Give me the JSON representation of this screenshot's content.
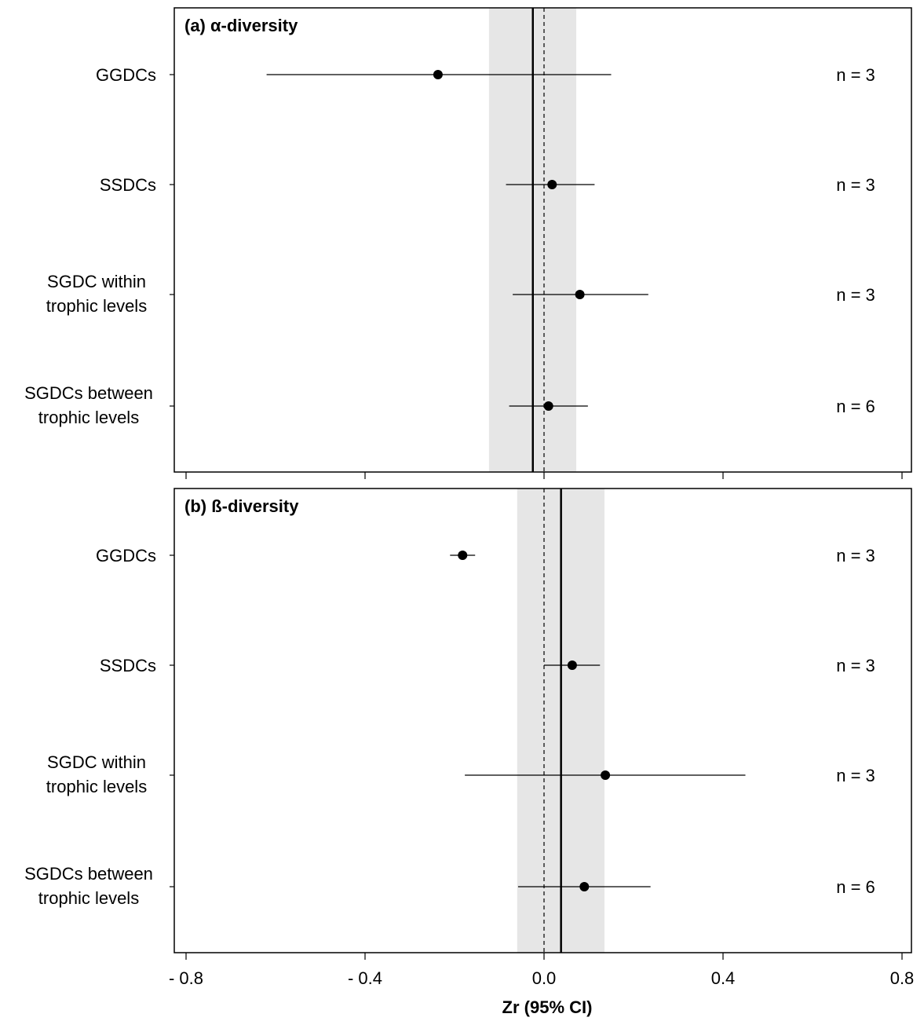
{
  "chart_data": [
    {
      "type": "scatter",
      "title": "(a) α-diversity",
      "categories": [
        [
          "GGDCs"
        ],
        [
          "SSDCs"
        ],
        [
          "SGDC within",
          "trophic levels"
        ],
        [
          "SGDCs between",
          "trophic levels"
        ]
      ],
      "points": [
        {
          "est": -0.237,
          "lo": -0.62,
          "hi": 0.15,
          "n_label": "n = 3"
        },
        {
          "est": 0.018,
          "lo": -0.085,
          "hi": 0.113,
          "n_label": "n = 3"
        },
        {
          "est": 0.08,
          "lo": -0.07,
          "hi": 0.233,
          "n_label": "n = 3"
        },
        {
          "est": 0.01,
          "lo": -0.078,
          "hi": 0.098,
          "n_label": "n = 6"
        }
      ],
      "overall": {
        "est": -0.025,
        "lo": -0.123,
        "hi": 0.072
      },
      "reference_line": 0.0,
      "xlim": [
        -0.8,
        0.8
      ]
    },
    {
      "type": "scatter",
      "title": "(b) ß-diversity",
      "categories": [
        [
          "GGDCs"
        ],
        [
          "SSDCs"
        ],
        [
          "SGDC within",
          "trophic levels"
        ],
        [
          "SGDCs between",
          "trophic levels"
        ]
      ],
      "points": [
        {
          "est": -0.182,
          "lo": -0.21,
          "hi": -0.154,
          "n_label": "n = 3"
        },
        {
          "est": 0.063,
          "lo": 0.0,
          "hi": 0.125,
          "n_label": "n = 3"
        },
        {
          "est": 0.137,
          "lo": -0.177,
          "hi": 0.45,
          "n_label": "n = 3"
        },
        {
          "est": 0.09,
          "lo": -0.058,
          "hi": 0.238,
          "n_label": "n = 6"
        }
      ],
      "overall": {
        "est": 0.038,
        "lo": -0.06,
        "hi": 0.135
      },
      "reference_line": 0.0,
      "xlim": [
        -0.8,
        0.8
      ]
    }
  ],
  "x_axis": {
    "label": "Zr (95% CI)",
    "ticks": [
      -0.8,
      -0.4,
      0.0,
      0.4,
      0.8
    ],
    "tick_labels": [
      "- 0.8",
      "- 0.4",
      "0.0",
      "0.4",
      "0.8"
    ]
  },
  "colors": {
    "band": "#e6e6e6",
    "ink": "#000000"
  }
}
